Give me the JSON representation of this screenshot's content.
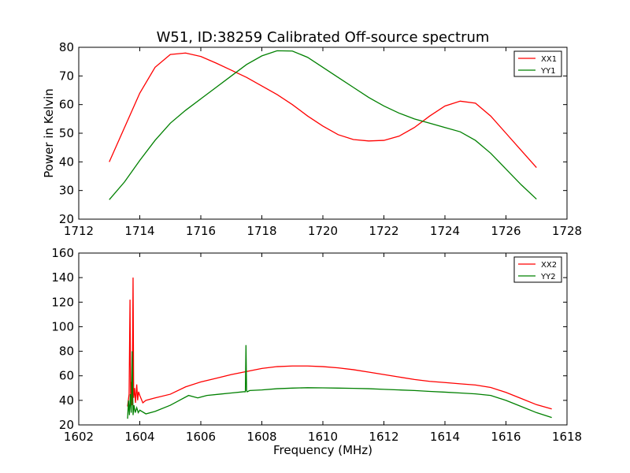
{
  "chart_data": [
    {
      "type": "line",
      "title": "W51, ID:38259 Calibrated Off-source spectrum",
      "xlabel": "",
      "ylabel": "Power in Kelvin",
      "xlim": [
        1712,
        1728
      ],
      "ylim": [
        20,
        80
      ],
      "xticks": [
        "1712",
        "1714",
        "1716",
        "1718",
        "1720",
        "1722",
        "1724",
        "1726",
        "1728"
      ],
      "yticks": [
        "20",
        "30",
        "40",
        "50",
        "60",
        "70",
        "80"
      ],
      "legend": "top-right",
      "series": [
        {
          "name": "XX1",
          "color": "#ff0000",
          "x": [
            1713.0,
            1713.5,
            1714.0,
            1714.5,
            1715.0,
            1715.5,
            1716.0,
            1716.5,
            1717.0,
            1717.5,
            1718.0,
            1718.5,
            1719.0,
            1719.5,
            1720.0,
            1720.5,
            1721.0,
            1721.5,
            1722.0,
            1722.5,
            1723.0,
            1723.5,
            1724.0,
            1724.5,
            1725.0,
            1725.5,
            1726.0,
            1726.5,
            1727.0
          ],
          "y": [
            40,
            52,
            64,
            73,
            77.5,
            78,
            76.8,
            74.5,
            72,
            69.5,
            66.5,
            63.5,
            60,
            56,
            52.5,
            49.5,
            47.8,
            47.3,
            47.5,
            49,
            52,
            56,
            59.5,
            61.2,
            60.5,
            56,
            50,
            44,
            38
          ]
        },
        {
          "name": "YY1",
          "color": "#008000",
          "x": [
            1713.0,
            1713.5,
            1714.0,
            1714.5,
            1715.0,
            1715.5,
            1716.0,
            1716.5,
            1717.0,
            1717.5,
            1718.0,
            1718.5,
            1719.0,
            1719.5,
            1720.0,
            1720.5,
            1721.0,
            1721.5,
            1722.0,
            1722.5,
            1723.0,
            1723.5,
            1724.0,
            1724.5,
            1725.0,
            1725.5,
            1726.0,
            1726.5,
            1727.0
          ],
          "y": [
            26.8,
            33,
            40.5,
            47.5,
            53.5,
            58,
            62,
            66,
            70,
            74,
            77,
            78.8,
            78.7,
            76.5,
            73,
            69.5,
            66,
            62.5,
            59.5,
            57,
            55,
            53.5,
            52,
            50.5,
            47.5,
            43,
            37.5,
            32,
            27
          ]
        }
      ]
    },
    {
      "type": "line",
      "title": "",
      "xlabel": "Frequency (MHz)",
      "ylabel": "",
      "xlim": [
        1602,
        1618
      ],
      "ylim": [
        20,
        160
      ],
      "xticks": [
        "1602",
        "1604",
        "1606",
        "1608",
        "1610",
        "1612",
        "1614",
        "1616",
        "1618"
      ],
      "yticks": [
        "20",
        "40",
        "60",
        "80",
        "100",
        "120",
        "140",
        "160"
      ],
      "legend": "top-right",
      "series": [
        {
          "name": "XX2",
          "color": "#ff0000",
          "x": [
            1603.6,
            1603.65,
            1603.68,
            1603.7,
            1603.72,
            1603.75,
            1603.78,
            1603.8,
            1603.83,
            1603.86,
            1603.9,
            1603.93,
            1603.96,
            1604.0,
            1604.1,
            1604.2,
            1604.5,
            1605.0,
            1605.5,
            1606.0,
            1606.5,
            1607.0,
            1607.5,
            1608.0,
            1608.5,
            1609.0,
            1609.5,
            1610.0,
            1610.5,
            1611.0,
            1611.5,
            1612.0,
            1612.5,
            1613.0,
            1613.5,
            1614.0,
            1614.5,
            1615.0,
            1615.5,
            1616.0,
            1616.5,
            1617.0,
            1617.5
          ],
          "y": [
            35,
            45,
            122,
            40,
            55,
            36,
            140,
            42,
            50,
            38,
            53,
            40,
            47,
            44,
            38,
            40,
            42,
            45,
            51,
            55,
            58,
            61,
            63.5,
            66,
            67.5,
            68,
            68,
            67.5,
            66.5,
            65,
            63,
            61,
            59,
            57,
            55.5,
            54.5,
            53.5,
            52.5,
            50.5,
            46.5,
            41.5,
            36.5,
            33
          ]
        },
        {
          "name": "YY2",
          "color": "#008000",
          "x": [
            1603.6,
            1603.63,
            1603.66,
            1603.69,
            1603.72,
            1603.75,
            1603.78,
            1603.81,
            1603.85,
            1603.9,
            1603.95,
            1604.0,
            1604.2,
            1604.5,
            1605.0,
            1605.3,
            1605.6,
            1605.9,
            1606.2,
            1606.6,
            1607.0,
            1607.4,
            1607.46,
            1607.48,
            1607.5,
            1607.52,
            1607.6,
            1608.0,
            1608.5,
            1609.0,
            1609.5,
            1610.0,
            1610.5,
            1611.0,
            1611.5,
            1612.0,
            1612.5,
            1613.0,
            1613.5,
            1614.0,
            1614.5,
            1615.0,
            1615.5,
            1616.0,
            1616.5,
            1617.0,
            1617.5
          ],
          "y": [
            25,
            40,
            28,
            45,
            30,
            80,
            28,
            36,
            30,
            34,
            30,
            32,
            29,
            31,
            36,
            40,
            44,
            42,
            44,
            45,
            46,
            47,
            47,
            85,
            48,
            47,
            48,
            48.5,
            49.5,
            50,
            50.3,
            50.2,
            50,
            49.8,
            49.5,
            49,
            48.5,
            48,
            47.3,
            46.7,
            46,
            45.3,
            44,
            40,
            35,
            30,
            26
          ]
        }
      ]
    }
  ]
}
